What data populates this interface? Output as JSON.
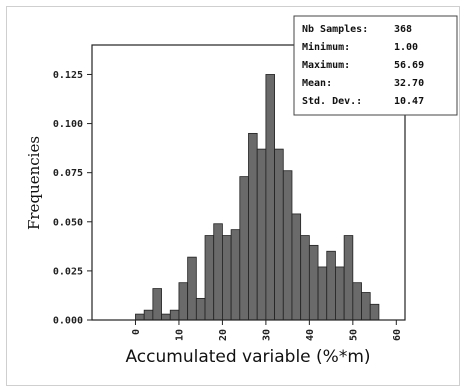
{
  "chart_data": {
    "type": "bar",
    "subtype": "histogram",
    "xlabel": "Accumulated variable (%*m)",
    "ylabel": "Frequencies",
    "xlim": [
      -10,
      62
    ],
    "ylim": [
      0,
      0.14
    ],
    "xticks": [
      "0",
      "10",
      "20",
      "30",
      "40",
      "50",
      "60"
    ],
    "yticks": [
      "0.000",
      "0.025",
      "0.050",
      "0.075",
      "0.100",
      "0.125"
    ],
    "bin_width": 2,
    "bins_start": [
      0,
      2,
      4,
      6,
      8,
      10,
      12,
      14,
      16,
      18,
      20,
      22,
      24,
      26,
      28,
      30,
      32,
      34,
      36,
      38,
      40,
      42,
      44,
      46,
      48,
      50,
      52,
      54
    ],
    "values": [
      0.003,
      0.005,
      0.016,
      0.003,
      0.005,
      0.019,
      0.032,
      0.011,
      0.043,
      0.049,
      0.043,
      0.046,
      0.073,
      0.095,
      0.087,
      0.125,
      0.087,
      0.076,
      0.054,
      0.043,
      0.038,
      0.027,
      0.035,
      0.027,
      0.043,
      0.019,
      0.014,
      0.008
    ],
    "bar_color": "#6a6a6a",
    "grid": false,
    "stats_box": {
      "placement": "top-right",
      "rows": [
        {
          "label": "Nb Samples:",
          "value": "368"
        },
        {
          "label": "Minimum:",
          "value": "1.00"
        },
        {
          "label": "Maximum:",
          "value": "56.69"
        },
        {
          "label": "Mean:",
          "value": "32.70"
        },
        {
          "label": "Std. Dev.:",
          "value": "10.47"
        }
      ]
    }
  }
}
